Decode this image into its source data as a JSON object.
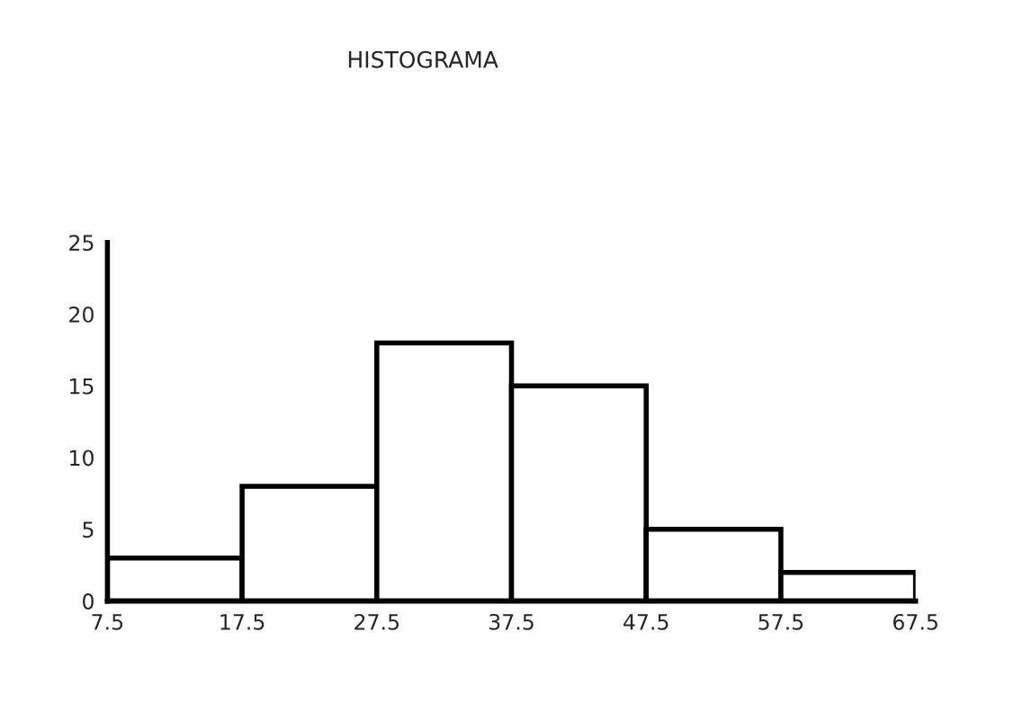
{
  "chart_data": {
    "type": "histogram",
    "title": "HISTOGRAMA",
    "bins": [
      7.5,
      17.5,
      27.5,
      37.5,
      47.5,
      57.5,
      67.5
    ],
    "values": [
      3,
      8,
      18,
      15,
      5,
      2
    ],
    "color": "#ffffff",
    "xlim": [
      7.5,
      67.5
    ],
    "xticks": [
      7.5,
      17.5,
      27.5,
      37.5,
      47.5,
      57.5,
      67.5
    ],
    "ylim": [
      0,
      25
    ],
    "yticks": [
      0,
      5,
      10,
      15,
      20,
      25
    ],
    "grid": false,
    "legend": false
  }
}
